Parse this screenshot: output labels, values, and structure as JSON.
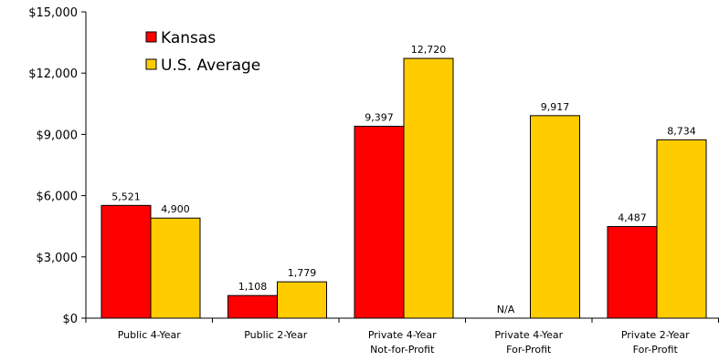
{
  "chart_data": {
    "type": "bar",
    "title": "",
    "xlabel": "",
    "ylabel": "",
    "ylim": [
      0,
      15000
    ],
    "yticks": [
      0,
      3000,
      6000,
      9000,
      12000,
      15000
    ],
    "ytick_labels": [
      "$0",
      "$3,000",
      "$6,000",
      "$9,000",
      "$12,000",
      "$15,000"
    ],
    "grid": false,
    "legend_position": "top-left",
    "categories": [
      [
        "Public 4-Year"
      ],
      [
        "Public 2-Year"
      ],
      [
        "Private 4-Year",
        "Not-for-Profit"
      ],
      [
        "Private 4-Year",
        "For-Profit"
      ],
      [
        "Private 2-Year",
        "For-Profit"
      ]
    ],
    "series": [
      {
        "name": "Kansas",
        "color": "#ff0000",
        "values": [
          5521,
          1108,
          9397,
          null,
          4487
        ],
        "labels": [
          "5,521",
          "1,108",
          "9,397",
          "N/A",
          "4,487"
        ]
      },
      {
        "name": "U.S. Average",
        "color": "#ffcc00",
        "values": [
          4900,
          1779,
          12720,
          9917,
          8734
        ],
        "labels": [
          "4,900",
          "1,779",
          "12,720",
          "9,917",
          "8,734"
        ]
      }
    ]
  }
}
